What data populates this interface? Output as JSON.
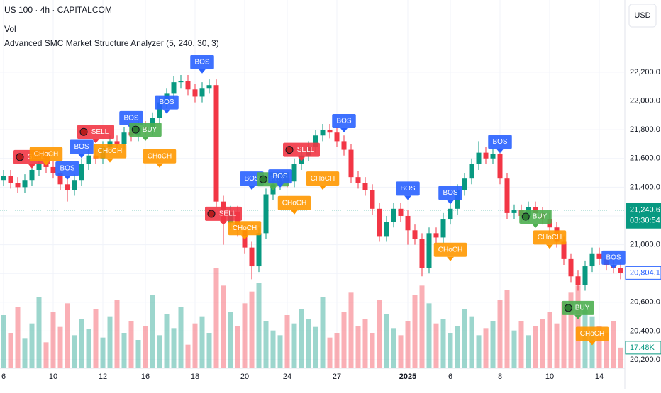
{
  "chart_data": {
    "type": "candlestick",
    "title": "US 100 · 4h · CAPITALCOM",
    "volume_title": "Vol",
    "indicator": "Advanced SMC Market Structure Analyzer (5, 240, 30, 3)",
    "currency": "USD",
    "up_color": "#089981",
    "down_color": "#f23645",
    "grid": true,
    "xlim": [
      -0.5,
      87.5
    ],
    "ylim": [
      20141,
      22702
    ],
    "yticks": [
      {
        "value": 20200,
        "label": "20,200.0"
      },
      {
        "value": 20400,
        "label": "20,400.0"
      },
      {
        "value": 20600,
        "label": "20,600.0"
      },
      {
        "value": 20800,
        "label": "20,800.0"
      },
      {
        "value": 21000,
        "label": "21,000.0"
      },
      {
        "value": 21200,
        "label": "21,200.0"
      },
      {
        "value": 21400,
        "label": "21,400.0"
      },
      {
        "value": 21600,
        "label": "21,600.0"
      },
      {
        "value": 21800,
        "label": "21,800.0"
      },
      {
        "value": 22000,
        "label": "22,000.0"
      },
      {
        "value": 22200,
        "label": "22,200.0"
      }
    ],
    "xticks": [
      {
        "value": 0,
        "label": "6"
      },
      {
        "value": 7,
        "label": "10"
      },
      {
        "value": 14,
        "label": "12"
      },
      {
        "value": 20,
        "label": "16"
      },
      {
        "value": 27,
        "label": "18"
      },
      {
        "value": 34,
        "label": "20"
      },
      {
        "value": 40,
        "label": "24"
      },
      {
        "value": 47,
        "label": "27"
      },
      {
        "value": 57,
        "label": "2025"
      },
      {
        "value": 63,
        "label": "6"
      },
      {
        "value": 70,
        "label": "8"
      },
      {
        "value": 77,
        "label": "10"
      },
      {
        "value": 84,
        "label": "14"
      }
    ],
    "candles": {
      "open": [
        21450,
        21480,
        21430,
        21400,
        21450,
        21520,
        21560,
        21540,
        21500,
        21420,
        21380,
        21450,
        21560,
        21620,
        21600,
        21680,
        21720,
        21700,
        21780,
        21760,
        21820,
        21800,
        21880,
        21990,
        22050,
        22130,
        22140,
        22080,
        22030,
        22090,
        22110,
        21300,
        21150,
        21230,
        21100,
        20980,
        20850,
        21080,
        21350,
        21420,
        21460,
        21440,
        21560,
        21620,
        21680,
        21760,
        21800,
        21780,
        21720,
        21660,
        21470,
        21430,
        21380,
        21250,
        21060,
        21160,
        21250,
        21200,
        21100,
        21040,
        20840,
        21080,
        21050,
        21180,
        21250,
        21380,
        21460,
        21560,
        21640,
        21600,
        21630,
        21460,
        21220,
        21240,
        21200,
        21260,
        21220,
        21180,
        21120,
        21020,
        20900,
        20780,
        20720,
        20850,
        20940,
        20900,
        20860,
        20840
      ],
      "high": [
        21520,
        21520,
        21470,
        21490,
        21560,
        21600,
        21600,
        21580,
        21540,
        21460,
        21490,
        21600,
        21660,
        21660,
        21720,
        21760,
        21760,
        21820,
        21820,
        21860,
        21860,
        21920,
        22030,
        22090,
        22170,
        22180,
        22180,
        22120,
        22130,
        22150,
        22150,
        21340,
        21270,
        21270,
        21140,
        21020,
        21120,
        21390,
        21460,
        21500,
        21500,
        21600,
        21660,
        21720,
        21800,
        21840,
        21840,
        21820,
        21760,
        21700,
        21510,
        21470,
        21420,
        21290,
        21200,
        21290,
        21290,
        21240,
        21140,
        21080,
        21120,
        21120,
        21220,
        21290,
        21420,
        21500,
        21600,
        21720,
        21680,
        21670,
        21670,
        21500,
        21280,
        21280,
        21300,
        21300,
        21260,
        21220,
        21160,
        21060,
        20940,
        20820,
        20890,
        20980,
        20980,
        20940,
        20900,
        20880
      ],
      "low": [
        21410,
        21390,
        21360,
        21360,
        21410,
        21480,
        21500,
        21460,
        21380,
        21300,
        21340,
        21410,
        21520,
        21560,
        21560,
        21640,
        21660,
        21660,
        21720,
        21720,
        21760,
        21760,
        21840,
        21950,
        22010,
        22090,
        22040,
        21990,
        21990,
        22050,
        21260,
        21000,
        21110,
        21060,
        20940,
        20760,
        20810,
        21040,
        21310,
        21380,
        21400,
        21400,
        21520,
        21580,
        21640,
        21720,
        21740,
        21680,
        21620,
        21430,
        21390,
        21340,
        21210,
        21020,
        21020,
        21120,
        21160,
        21000,
        21000,
        20780,
        20800,
        21010,
        21010,
        21140,
        21210,
        21340,
        21420,
        21520,
        21560,
        21560,
        21420,
        21180,
        21180,
        21160,
        21160,
        21180,
        21140,
        21080,
        20980,
        20860,
        20740,
        20680,
        20680,
        20810,
        20860,
        20820,
        20800,
        20760
      ],
      "close": [
        21480,
        21430,
        21400,
        21450,
        21520,
        21560,
        21540,
        21500,
        21420,
        21380,
        21450,
        21560,
        21620,
        21600,
        21680,
        21720,
        21700,
        21780,
        21760,
        21820,
        21800,
        21880,
        21990,
        22050,
        22130,
        22140,
        22080,
        22030,
        22090,
        22110,
        21300,
        21150,
        21230,
        21100,
        20980,
        20850,
        21080,
        21350,
        21420,
        21460,
        21440,
        21560,
        21620,
        21680,
        21760,
        21800,
        21780,
        21720,
        21660,
        21470,
        21430,
        21380,
        21250,
        21060,
        21160,
        21250,
        21200,
        21100,
        21040,
        20840,
        21080,
        21050,
        21180,
        21250,
        21380,
        21460,
        21560,
        21640,
        21600,
        21630,
        21460,
        21220,
        21240,
        21200,
        21260,
        21220,
        21180,
        21120,
        21020,
        20900,
        20780,
        20720,
        20850,
        20940,
        20900,
        20860,
        20840,
        20804.1
      ]
    },
    "volume": {
      "values": [
        45,
        30,
        52,
        25,
        38,
        60,
        22,
        48,
        35,
        55,
        28,
        42,
        33,
        50,
        26,
        44,
        58,
        30,
        40,
        24,
        36,
        62,
        28,
        46,
        34,
        52,
        20,
        38,
        44,
        30,
        85,
        70,
        48,
        36,
        55,
        65,
        72,
        40,
        32,
        28,
        45,
        38,
        50,
        42,
        35,
        60,
        26,
        30,
        48,
        64,
        36,
        42,
        30,
        58,
        46,
        34,
        28,
        40,
        62,
        70,
        55,
        38,
        42,
        30,
        36,
        50,
        44,
        28,
        34,
        40,
        58,
        66,
        32,
        40,
        28,
        36,
        42,
        48,
        38,
        56,
        64,
        70,
        52,
        44,
        36,
        30,
        40,
        17.48
      ],
      "vlim": [
        0,
        90
      ],
      "last": {
        "value": 17.48,
        "label": "17.48K"
      }
    },
    "last_price": {
      "value": 20804.1,
      "label": "20,804.1"
    },
    "marker_price": {
      "value": 21240.6,
      "label": "21,240.6"
    },
    "countdown": "03:30:54",
    "annotations": [
      {
        "text": "SELL",
        "x": 4,
        "price": 21609,
        "color": "#f23645"
      },
      {
        "text": "CHoCH",
        "x": 6,
        "price": 21630,
        "color": "#ff9800"
      },
      {
        "text": "BOS",
        "x": 9,
        "price": 21530,
        "color": "#2962ff"
      },
      {
        "text": "BOS",
        "x": 11,
        "price": 21680,
        "color": "#2962ff"
      },
      {
        "text": "SELL",
        "x": 13,
        "price": 21785,
        "color": "#f23645"
      },
      {
        "text": "CHoCH",
        "x": 15,
        "price": 21650,
        "color": "#ff9800"
      },
      {
        "text": "BOS",
        "x": 18,
        "price": 21880,
        "color": "#2962ff"
      },
      {
        "text": "BUY",
        "x": 20,
        "price": 21800,
        "color": "#4caf50"
      },
      {
        "text": "CHoCH",
        "x": 22,
        "price": 21615,
        "color": "#ff9800"
      },
      {
        "text": "BOS",
        "x": 23,
        "price": 21990,
        "color": "#2962ff"
      },
      {
        "text": "BOS",
        "x": 28,
        "price": 22270,
        "color": "#2962ff"
      },
      {
        "text": "SELL",
        "x": 31,
        "price": 21215,
        "color": "#f23645"
      },
      {
        "text": "CHoCH",
        "x": 34,
        "price": 21115,
        "color": "#ff9800"
      },
      {
        "text": "BOS",
        "x": 35,
        "price": 21460,
        "color": "#2962ff"
      },
      {
        "text": "BUY",
        "x": 38,
        "price": 21455,
        "color": "#4caf50"
      },
      {
        "text": "BOS",
        "x": 39,
        "price": 21475,
        "color": "#2962ff"
      },
      {
        "text": "CHoCH",
        "x": 41,
        "price": 21290,
        "color": "#ff9800"
      },
      {
        "text": "SELL",
        "x": 42,
        "price": 21660,
        "color": "#f23645"
      },
      {
        "text": "CHoCH",
        "x": 45,
        "price": 21460,
        "color": "#ff9800"
      },
      {
        "text": "BOS",
        "x": 48,
        "price": 21860,
        "color": "#2962ff"
      },
      {
        "text": "BOS",
        "x": 57,
        "price": 21390,
        "color": "#2962ff"
      },
      {
        "text": "BOS",
        "x": 63,
        "price": 21360,
        "color": "#2962ff"
      },
      {
        "text": "CHoCH",
        "x": 63,
        "price": 20965,
        "color": "#ff9800"
      },
      {
        "text": "BOS",
        "x": 70,
        "price": 21715,
        "color": "#2962ff"
      },
      {
        "text": "BUY",
        "x": 75,
        "price": 21195,
        "color": "#4caf50"
      },
      {
        "text": "CHoCH",
        "x": 77,
        "price": 21050,
        "color": "#ff9800"
      },
      {
        "text": "BUY",
        "x": 81,
        "price": 20560,
        "color": "#4caf50"
      },
      {
        "text": "CHoCH",
        "x": 83,
        "price": 20380,
        "color": "#ff9800"
      },
      {
        "text": "BOS",
        "x": 86,
        "price": 20910,
        "color": "#2962ff"
      }
    ]
  }
}
